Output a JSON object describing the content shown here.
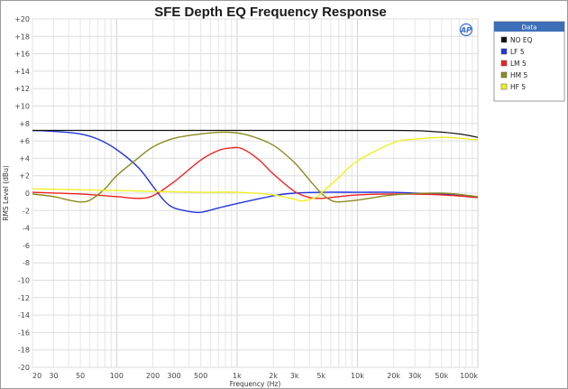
{
  "chart_data": {
    "type": "line",
    "title": "SFE Depth EQ Frequency Response",
    "xlabel": "Frequency (Hz)",
    "ylabel": "RMS Level (dBu)",
    "xscale": "log",
    "xlim": [
      20,
      100000
    ],
    "ylim": [
      -20,
      20
    ],
    "x_ticks": [
      20,
      30,
      50,
      100,
      200,
      300,
      500,
      1000,
      2000,
      3000,
      5000,
      10000,
      20000,
      30000,
      50000,
      100000
    ],
    "x_tick_labels": [
      "20",
      "30",
      "50",
      "100",
      "200",
      "300",
      "500",
      "1k",
      "2k",
      "3k",
      "5k",
      "10k",
      "20k",
      "30k",
      "50k",
      "100k"
    ],
    "y_ticks": [
      -20,
      -18,
      -16,
      -14,
      -12,
      -10,
      -8,
      -6,
      -4,
      -2,
      0,
      2,
      4,
      6,
      8,
      10,
      12,
      14,
      16,
      18,
      20
    ],
    "y_tick_labels": [
      "-20",
      "-18",
      "-16",
      "-14",
      "-12",
      "-10",
      "-8",
      "-6",
      "-4",
      "-2",
      "0",
      "+2",
      "+4",
      "+6",
      "+8",
      "+10",
      "+12",
      "+14",
      "+16",
      "+18",
      "+20"
    ],
    "grid": true,
    "legend": {
      "title": "Data",
      "position": "right"
    },
    "logo_text": "AP",
    "series": [
      {
        "name": "NO EQ",
        "color": "#111111",
        "points": [
          [
            20,
            7.2
          ],
          [
            1000,
            7.2
          ],
          [
            20000,
            7.2
          ],
          [
            40000,
            7.1
          ],
          [
            70000,
            6.8
          ],
          [
            100000,
            6.4
          ]
        ]
      },
      {
        "name": "LF 5",
        "color": "#2233dd",
        "points": [
          [
            20,
            7.2
          ],
          [
            30,
            7.1
          ],
          [
            50,
            6.8
          ],
          [
            70,
            6.2
          ],
          [
            100,
            5.0
          ],
          [
            150,
            3.0
          ],
          [
            200,
            0.8
          ],
          [
            250,
            -0.9
          ],
          [
            300,
            -1.7
          ],
          [
            400,
            -2.1
          ],
          [
            500,
            -2.2
          ],
          [
            700,
            -1.7
          ],
          [
            1000,
            -1.2
          ],
          [
            2000,
            -0.3
          ],
          [
            3000,
            0.0
          ],
          [
            5000,
            0.1
          ],
          [
            10000,
            0.1
          ],
          [
            20000,
            0.1
          ],
          [
            30000,
            0.0
          ],
          [
            50000,
            -0.1
          ],
          [
            100000,
            -0.5
          ]
        ]
      },
      {
        "name": "LM 5",
        "color": "#ee2222",
        "points": [
          [
            20,
            0.1
          ],
          [
            50,
            -0.1
          ],
          [
            100,
            -0.4
          ],
          [
            150,
            -0.6
          ],
          [
            200,
            -0.3
          ],
          [
            300,
            1.3
          ],
          [
            500,
            3.8
          ],
          [
            700,
            4.9
          ],
          [
            900,
            5.2
          ],
          [
            1100,
            5.1
          ],
          [
            1500,
            3.9
          ],
          [
            2000,
            2.2
          ],
          [
            3000,
            0.2
          ],
          [
            4000,
            -0.5
          ],
          [
            5000,
            -0.6
          ],
          [
            7000,
            -0.4
          ],
          [
            10000,
            -0.2
          ],
          [
            20000,
            -0.1
          ],
          [
            50000,
            -0.2
          ],
          [
            100000,
            -0.5
          ]
        ]
      },
      {
        "name": "HM 5",
        "color": "#8b8b22",
        "points": [
          [
            20,
            -0.1
          ],
          [
            30,
            -0.4
          ],
          [
            40,
            -0.8
          ],
          [
            50,
            -1.0
          ],
          [
            60,
            -0.8
          ],
          [
            80,
            0.5
          ],
          [
            100,
            2.0
          ],
          [
            150,
            4.0
          ],
          [
            200,
            5.3
          ],
          [
            300,
            6.3
          ],
          [
            500,
            6.8
          ],
          [
            800,
            7.0
          ],
          [
            1200,
            6.7
          ],
          [
            2000,
            5.5
          ],
          [
            3000,
            3.5
          ],
          [
            4000,
            1.5
          ],
          [
            5000,
            0.0
          ],
          [
            6000,
            -0.8
          ],
          [
            7000,
            -1.0
          ],
          [
            10000,
            -0.8
          ],
          [
            20000,
            -0.2
          ],
          [
            50000,
            0.0
          ],
          [
            100000,
            -0.4
          ]
        ]
      },
      {
        "name": "HF 5",
        "color": "#f0f020",
        "points": [
          [
            20,
            0.5
          ],
          [
            100,
            0.3
          ],
          [
            200,
            0.2
          ],
          [
            500,
            0.1
          ],
          [
            1000,
            0.1
          ],
          [
            2000,
            -0.2
          ],
          [
            3000,
            -0.7
          ],
          [
            3500,
            -0.9
          ],
          [
            4500,
            -0.5
          ],
          [
            5000,
            0.0
          ],
          [
            7000,
            1.8
          ],
          [
            10000,
            3.7
          ],
          [
            20000,
            5.8
          ],
          [
            30000,
            6.2
          ],
          [
            50000,
            6.4
          ],
          [
            70000,
            6.3
          ],
          [
            100000,
            6.1
          ]
        ]
      }
    ]
  }
}
